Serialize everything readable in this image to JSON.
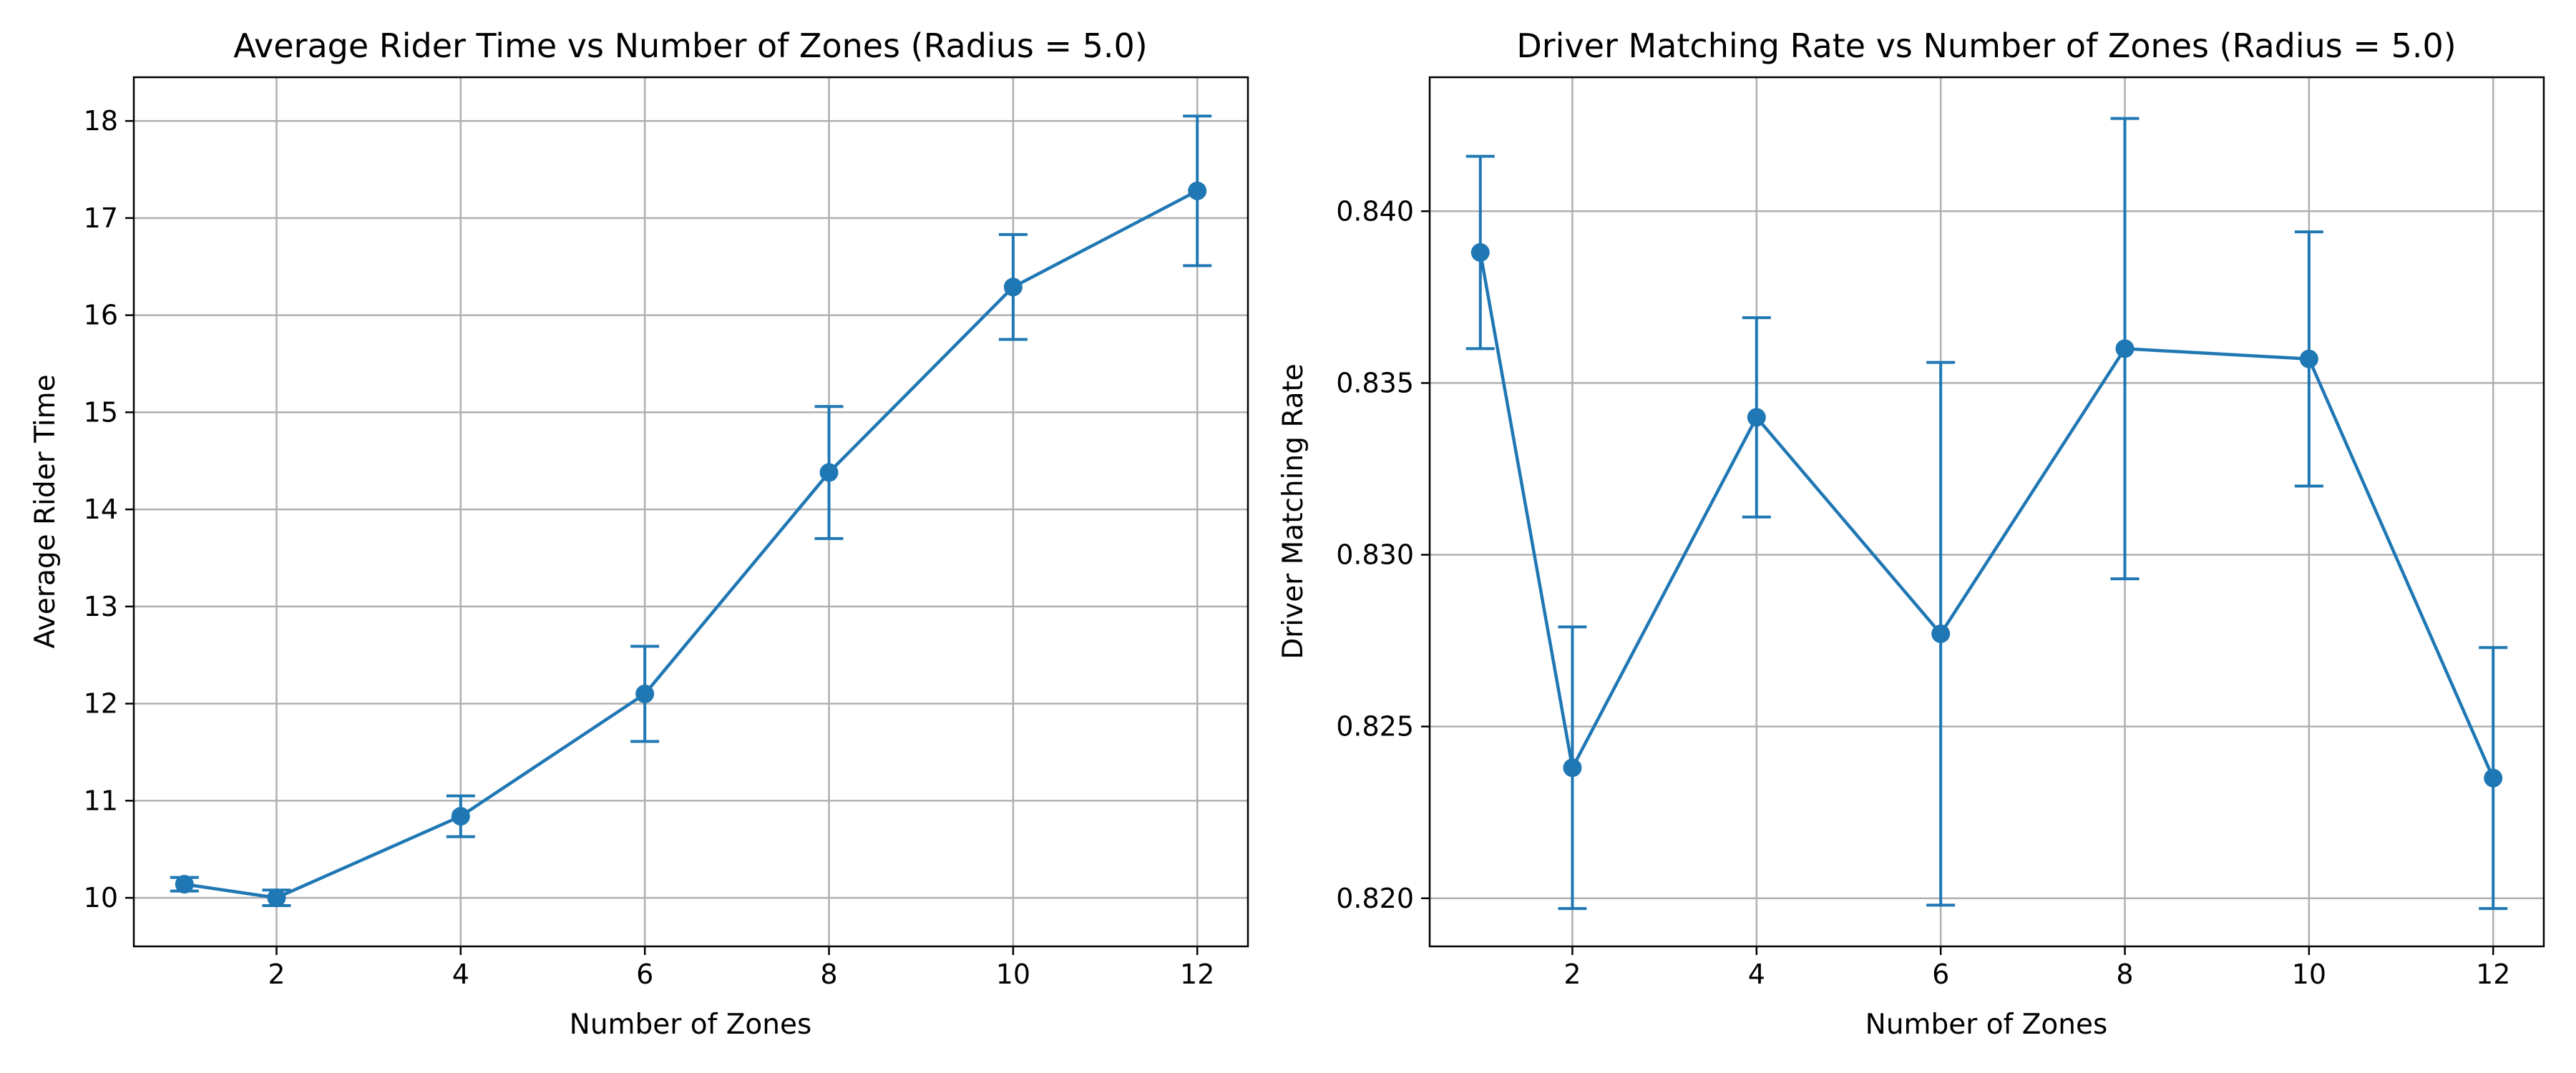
{
  "chart_data": [
    {
      "type": "line",
      "title": "Average Rider Time vs Number of Zones (Radius = 5.0)",
      "xlabel": "Number of Zones",
      "ylabel": "Average Rider Time",
      "x": [
        1,
        2,
        4,
        6,
        8,
        10,
        12
      ],
      "series": [
        {
          "values": [
            10.14,
            10.0,
            10.84,
            12.1,
            14.38,
            16.29,
            17.28
          ],
          "errors": [
            0.07,
            0.08,
            0.21,
            0.49,
            0.68,
            0.54,
            0.77
          ],
          "color": "#1f77b4"
        }
      ],
      "xlim": [
        0.45,
        12.55
      ],
      "ylim": [
        9.5,
        18.45
      ],
      "xticks": [
        2,
        4,
        6,
        8,
        10,
        12
      ],
      "yticks": [
        10,
        11,
        12,
        13,
        14,
        15,
        16,
        17,
        18
      ],
      "xtick_labels": [
        "2",
        "4",
        "6",
        "8",
        "10",
        "12"
      ],
      "ytick_labels": [
        "10",
        "11",
        "12",
        "13",
        "14",
        "15",
        "16",
        "17",
        "18"
      ],
      "grid": true
    },
    {
      "type": "line",
      "title": "Driver Matching Rate vs Number of Zones (Radius = 5.0)",
      "xlabel": "Number of Zones",
      "ylabel": "Driver Matching Rate",
      "x": [
        1,
        2,
        4,
        6,
        8,
        10,
        12
      ],
      "series": [
        {
          "values": [
            0.8388,
            0.8238,
            0.834,
            0.8277,
            0.836,
            0.8357,
            0.8235
          ],
          "errors": [
            0.0028,
            0.0041,
            0.0029,
            0.0079,
            0.0067,
            0.0037,
            0.0038
          ],
          "color": "#1f77b4"
        }
      ],
      "xlim": [
        0.45,
        12.55
      ],
      "ylim": [
        0.8186,
        0.8439
      ],
      "xticks": [
        2,
        4,
        6,
        8,
        10,
        12
      ],
      "yticks": [
        0.82,
        0.825,
        0.83,
        0.835,
        0.84
      ],
      "xtick_labels": [
        "2",
        "4",
        "6",
        "8",
        "10",
        "12"
      ],
      "ytick_labels": [
        "0.820",
        "0.825",
        "0.830",
        "0.835",
        "0.840"
      ],
      "grid": true
    }
  ]
}
